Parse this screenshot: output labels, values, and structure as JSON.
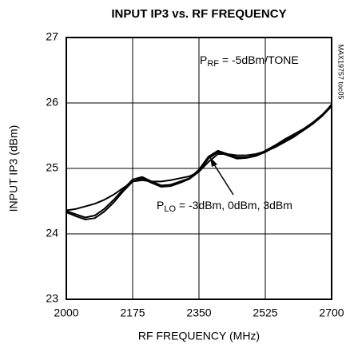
{
  "chart_data": {
    "type": "line",
    "title": "INPUT IP3 vs. RF FREQUENCY",
    "x_label": "RF FREQUENCY (MHz)",
    "y_label": "INPUT IP3 (dBm)",
    "side_note": "MAX19757 toc05",
    "annotations": [
      {
        "base": "P",
        "sub": "RF",
        "rest": " = -5dBm/TONE"
      },
      {
        "base": "P",
        "sub": "LO",
        "rest": " = -3dBm, 0dBm, 3dBm"
      }
    ],
    "x": [
      2000,
      2025,
      2050,
      2075,
      2100,
      2125,
      2150,
      2175,
      2200,
      2225,
      2250,
      2275,
      2300,
      2325,
      2350,
      2375,
      2400,
      2425,
      2450,
      2475,
      2500,
      2525,
      2550,
      2575,
      2600,
      2625,
      2650,
      2675,
      2700
    ],
    "series": [
      {
        "color": "#000000",
        "values": [
          24.35,
          24.3,
          24.25,
          24.28,
          24.38,
          24.52,
          24.68,
          24.83,
          24.87,
          24.8,
          24.74,
          24.75,
          24.8,
          24.85,
          24.98,
          25.18,
          25.27,
          25.22,
          25.17,
          25.17,
          25.2,
          25.27,
          25.35,
          25.44,
          25.52,
          25.6,
          25.7,
          25.82,
          25.97
        ]
      },
      {
        "color": "#000000",
        "values": [
          24.33,
          24.27,
          24.22,
          24.24,
          24.34,
          24.48,
          24.65,
          24.8,
          24.85,
          24.78,
          24.72,
          24.73,
          24.78,
          24.84,
          24.95,
          25.15,
          25.25,
          25.2,
          25.15,
          25.16,
          25.19,
          25.25,
          25.33,
          25.42,
          25.5,
          25.58,
          25.68,
          25.8,
          25.95
        ]
      },
      {
        "color": "#000000",
        "values": [
          24.36,
          24.38,
          24.42,
          24.46,
          24.52,
          24.6,
          24.7,
          24.8,
          24.82,
          24.8,
          24.8,
          24.82,
          24.85,
          24.88,
          24.95,
          25.1,
          25.22,
          25.22,
          25.2,
          25.2,
          25.22,
          25.26,
          25.32,
          25.4,
          25.48,
          25.58,
          25.68,
          25.8,
          25.98
        ]
      }
    ],
    "xlim": [
      2000,
      2700
    ],
    "xticks": [
      2000,
      2175,
      2350,
      2525,
      2700
    ],
    "ylim": [
      23,
      27
    ],
    "yticks": [
      23,
      24,
      25,
      26,
      27
    ],
    "grid": true
  }
}
